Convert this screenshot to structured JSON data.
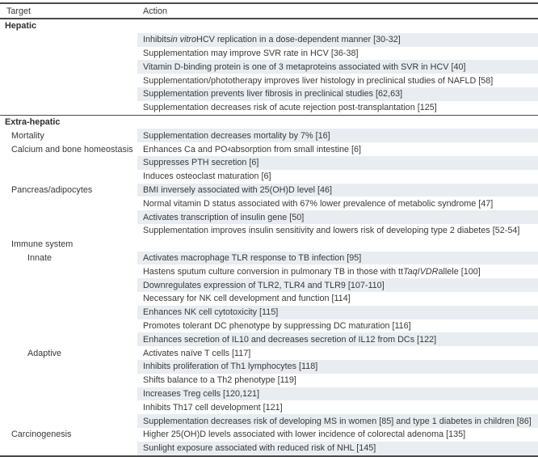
{
  "colors": {
    "shaded_row": "#e9edf2",
    "rule": "#4a4a4a",
    "text": "#383838"
  },
  "table": {
    "columns": [
      "Target",
      "Action"
    ],
    "rows": [
      {
        "target": "Hepatic",
        "type": "section",
        "indent": 0,
        "action": null,
        "shaded": false,
        "divider": false
      },
      {
        "target": "",
        "indent": 1,
        "action": [
          {
            "t": "Inhibits "
          },
          {
            "t": "in vitro",
            "i": true
          },
          {
            "t": " HCV replication in a dose-dependent manner [30-32]"
          }
        ],
        "shaded": true,
        "divider": false
      },
      {
        "target": "",
        "indent": 1,
        "action": "Supplementation may improve SVR rate in HCV [36-38]",
        "shaded": false,
        "divider": false
      },
      {
        "target": "",
        "indent": 1,
        "action": "Vitamin D-binding protein is one of 3 metaproteins associated with SVR in HCV [40]",
        "shaded": true,
        "divider": false
      },
      {
        "target": "",
        "indent": 1,
        "action": "Supplementation/phototherapy improves liver histology in preclinical studies of NAFLD [58]",
        "shaded": false,
        "divider": false
      },
      {
        "target": "",
        "indent": 1,
        "action": "Supplementation prevents liver fibrosis in preclinical studies [62,63]",
        "shaded": true,
        "divider": false
      },
      {
        "target": "",
        "indent": 1,
        "action": "Supplementation decreases risk of acute rejection post-transplantation [125]",
        "shaded": false,
        "divider": false
      },
      {
        "target": "Extra-hepatic",
        "type": "section",
        "indent": 0,
        "action": null,
        "shaded": false,
        "divider": true
      },
      {
        "target": "Mortality",
        "indent": 1,
        "action": "Supplementation decreases mortality by 7% [16]",
        "shaded": true,
        "divider": false
      },
      {
        "target": "Calcium and bone homeostasis",
        "indent": 1,
        "action": [
          {
            "t": "Enhances Ca and PO"
          },
          {
            "t": "4",
            "sub": true
          },
          {
            "t": " absorption from small intestine [6]"
          }
        ],
        "shaded": false,
        "divider": false
      },
      {
        "target": "",
        "indent": 1,
        "action": "Suppresses PTH secretion [6]",
        "shaded": true,
        "divider": false
      },
      {
        "target": "",
        "indent": 1,
        "action": "Induces osteoclast maturation [6]",
        "shaded": false,
        "divider": false
      },
      {
        "target": "Pancreas/adipocytes",
        "indent": 1,
        "action": "BMI inversely associated with 25(OH)D level [46]",
        "shaded": true,
        "divider": false
      },
      {
        "target": "",
        "indent": 1,
        "action": "Normal vitamin D status associated with 67% lower prevalence of metabolic syndrome [47]",
        "shaded": false,
        "divider": false
      },
      {
        "target": "",
        "indent": 1,
        "action": "Activates transcription of insulin gene [50]",
        "shaded": true,
        "divider": false
      },
      {
        "target": "",
        "indent": 1,
        "action": "Supplementation improves insulin sensitivity and lowers risk of developing type 2 diabetes [52-54]",
        "shaded": false,
        "divider": false
      },
      {
        "target": "Immune system",
        "indent": 1,
        "action": null,
        "shaded": false,
        "divider": false
      },
      {
        "target": "Innate",
        "indent": 2,
        "action": "Activates macrophage TLR response to TB infection [95]",
        "shaded": true,
        "divider": false
      },
      {
        "target": "",
        "indent": 2,
        "action": [
          {
            "t": "Hastens sputum culture conversion in pulmonary TB in those with tt "
          },
          {
            "t": "TaqI",
            "i": true
          },
          {
            "t": " "
          },
          {
            "t": "VDR",
            "i": true
          },
          {
            "t": " allele [100]"
          }
        ],
        "shaded": false,
        "divider": false
      },
      {
        "target": "",
        "indent": 2,
        "action": "Downregulates expression of TLR2, TLR4 and TLR9 [107-110]",
        "shaded": true,
        "divider": false
      },
      {
        "target": "",
        "indent": 2,
        "action": "Necessary for NK cell development and function [114]",
        "shaded": false,
        "divider": false
      },
      {
        "target": "",
        "indent": 2,
        "action": "Enhances NK cell cytotoxicity [115]",
        "shaded": true,
        "divider": false
      },
      {
        "target": "",
        "indent": 2,
        "action": "Promotes tolerant DC phenotype by suppressing DC maturation [116]",
        "shaded": false,
        "divider": false
      },
      {
        "target": "",
        "indent": 2,
        "action": "Enhances secretion of IL10 and decreases secretion of IL12 from DCs [122]",
        "shaded": true,
        "divider": false
      },
      {
        "target": "Adaptive",
        "indent": 2,
        "action": "Activates naïve T cells [117]",
        "shaded": false,
        "divider": false
      },
      {
        "target": "",
        "indent": 2,
        "action": "Inhibits proliferation of Th1 lymphocytes [118]",
        "shaded": true,
        "divider": false
      },
      {
        "target": "",
        "indent": 2,
        "action": "Shifts balance to a Th2 phenotype [119]",
        "shaded": false,
        "divider": false
      },
      {
        "target": "",
        "indent": 2,
        "action": "Increases Treg cells [120,121]",
        "shaded": true,
        "divider": false
      },
      {
        "target": "",
        "indent": 2,
        "action": "Inhibits Th17 cell development [121]",
        "shaded": false,
        "divider": false
      },
      {
        "target": "",
        "indent": 2,
        "action": "Supplementation decreases risk of developing MS in women [85] and type 1 diabetes in children [86]",
        "shaded": true,
        "divider": false
      },
      {
        "target": "Carcinogenesis",
        "indent": 1,
        "action": "Higher 25(OH)D levels associated with lower incidence of colorectal adenoma [135]",
        "shaded": false,
        "divider": false
      },
      {
        "target": "",
        "indent": 1,
        "action": "Sunlight exposure associated with reduced risk of NHL [145]",
        "shaded": true,
        "divider": false
      }
    ]
  }
}
